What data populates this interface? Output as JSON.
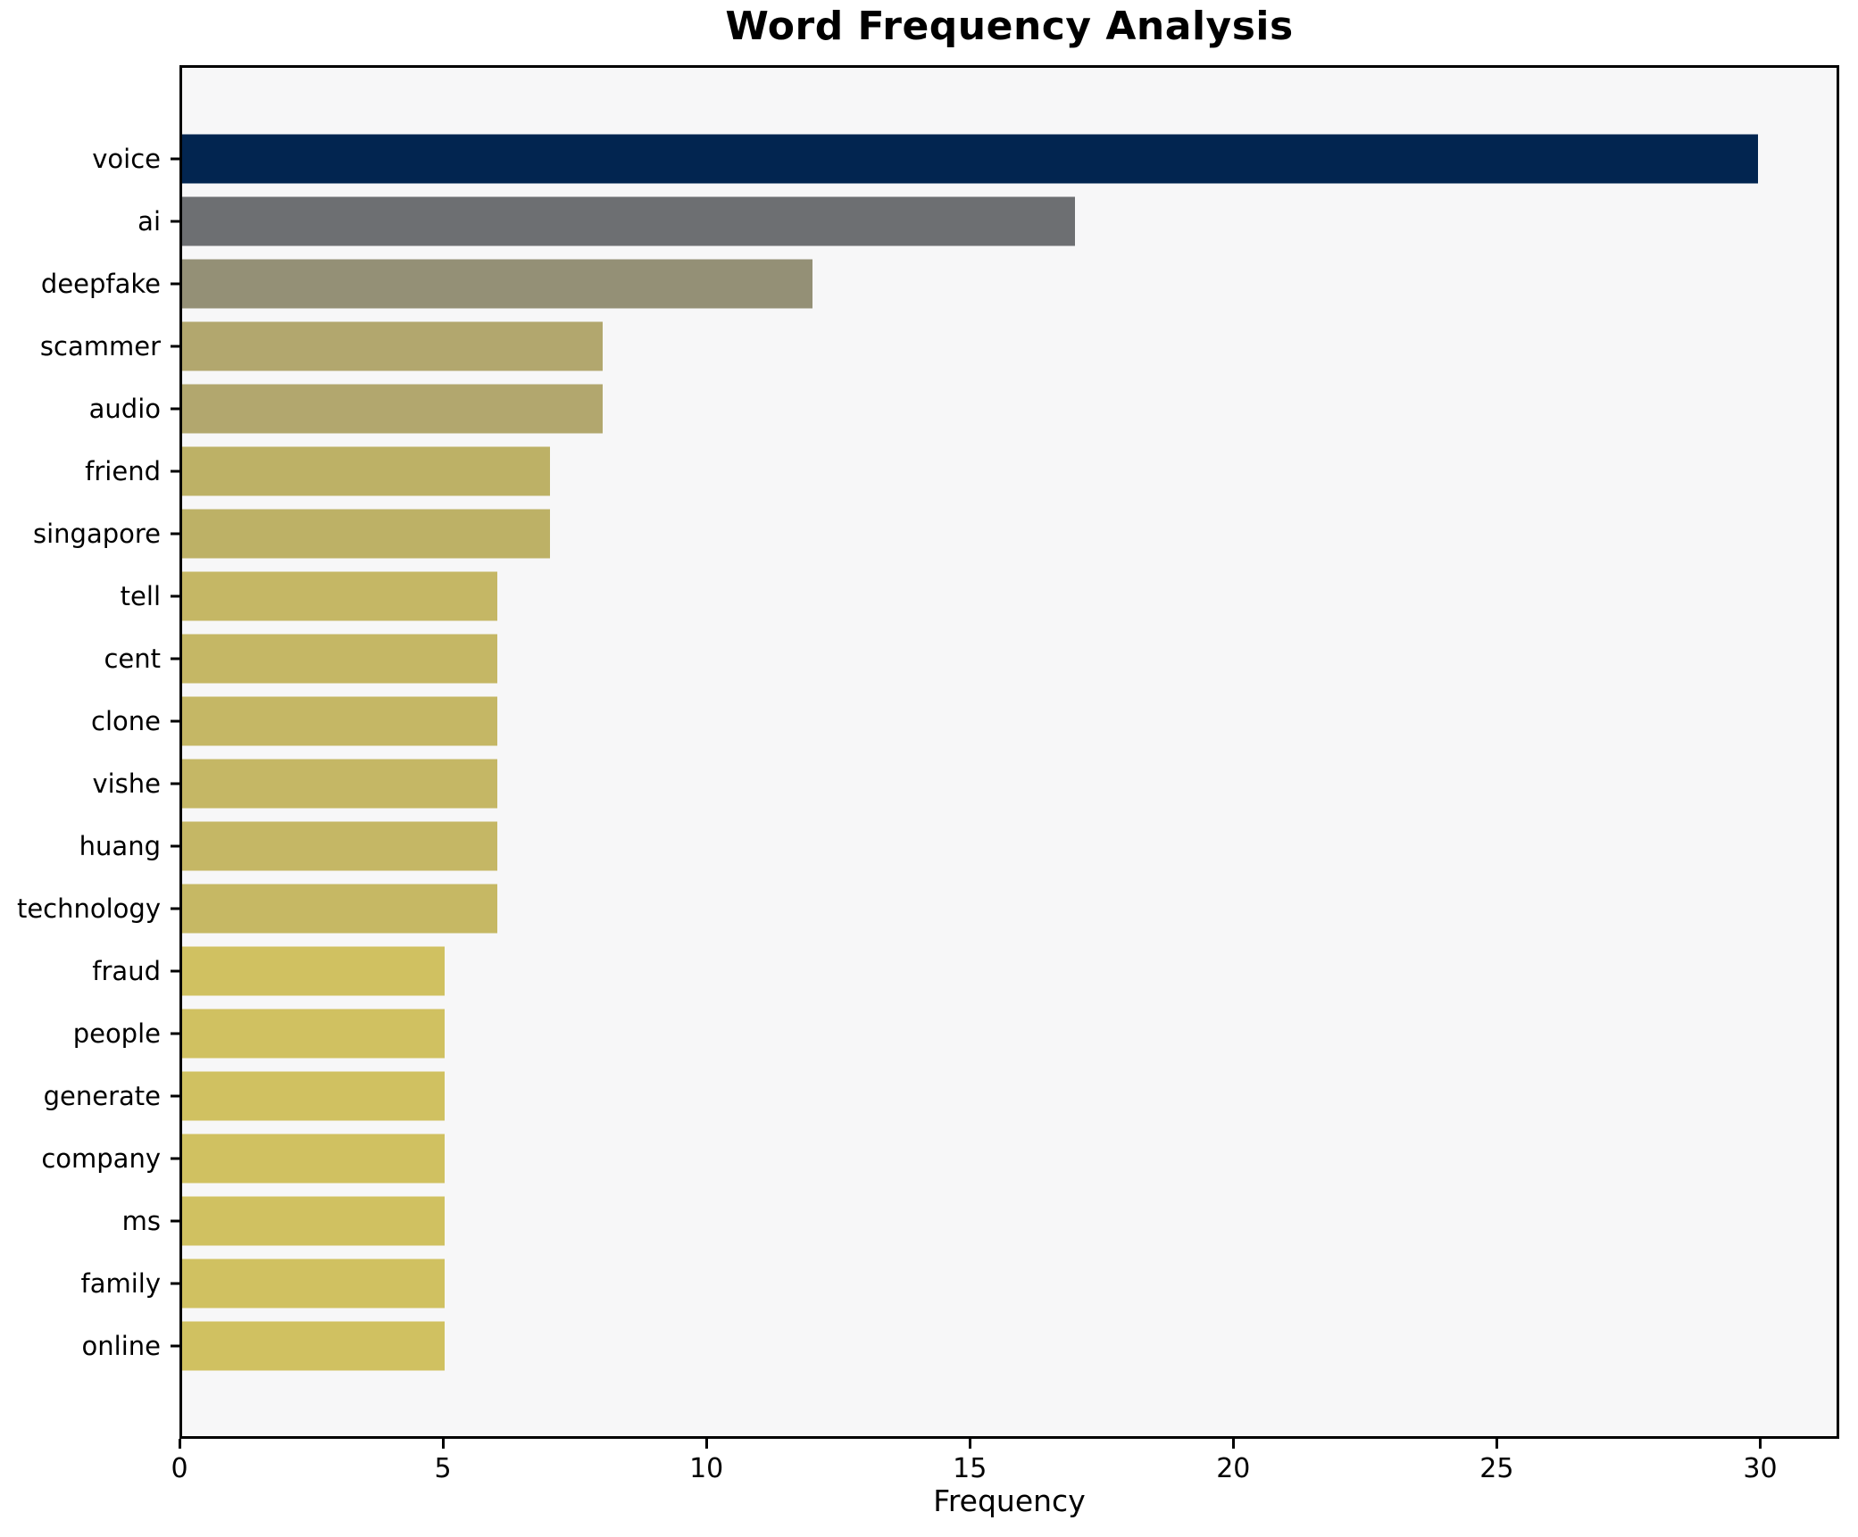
{
  "title": "Word Frequency Analysis",
  "chart_data": {
    "type": "bar",
    "orientation": "horizontal",
    "title": "Word Frequency Analysis",
    "xlabel": "Frequency",
    "ylabel": "",
    "categories": [
      "voice",
      "ai",
      "deepfake",
      "scammer",
      "audio",
      "friend",
      "singapore",
      "tell",
      "cent",
      "clone",
      "vishe",
      "huang",
      "technology",
      "fraud",
      "people",
      "generate",
      "company",
      "ms",
      "family",
      "online"
    ],
    "values": [
      30,
      17,
      12,
      8,
      8,
      7,
      7,
      6,
      6,
      6,
      6,
      6,
      6,
      5,
      5,
      5,
      5,
      5,
      5,
      5
    ],
    "bar_colors": [
      "#022550",
      "#6d6f72",
      "#949076",
      "#b2a76e",
      "#b2a76e",
      "#bdb166",
      "#bdb166",
      "#c5b765",
      "#c5b765",
      "#c5b765",
      "#c5b765",
      "#c5b765",
      "#c6b864",
      "#d0c161",
      "#d0c161",
      "#d0c161",
      "#d0c161",
      "#d0c161",
      "#d0c161",
      "#d0c161"
    ],
    "xlim": [
      0,
      31.5
    ],
    "xticks": [
      0,
      5,
      10,
      15,
      20,
      25,
      30
    ],
    "grid": false,
    "legend": null,
    "plot_background": "#f7f7f8",
    "spine_color": "#000000",
    "page_background": "#ffffff"
  }
}
